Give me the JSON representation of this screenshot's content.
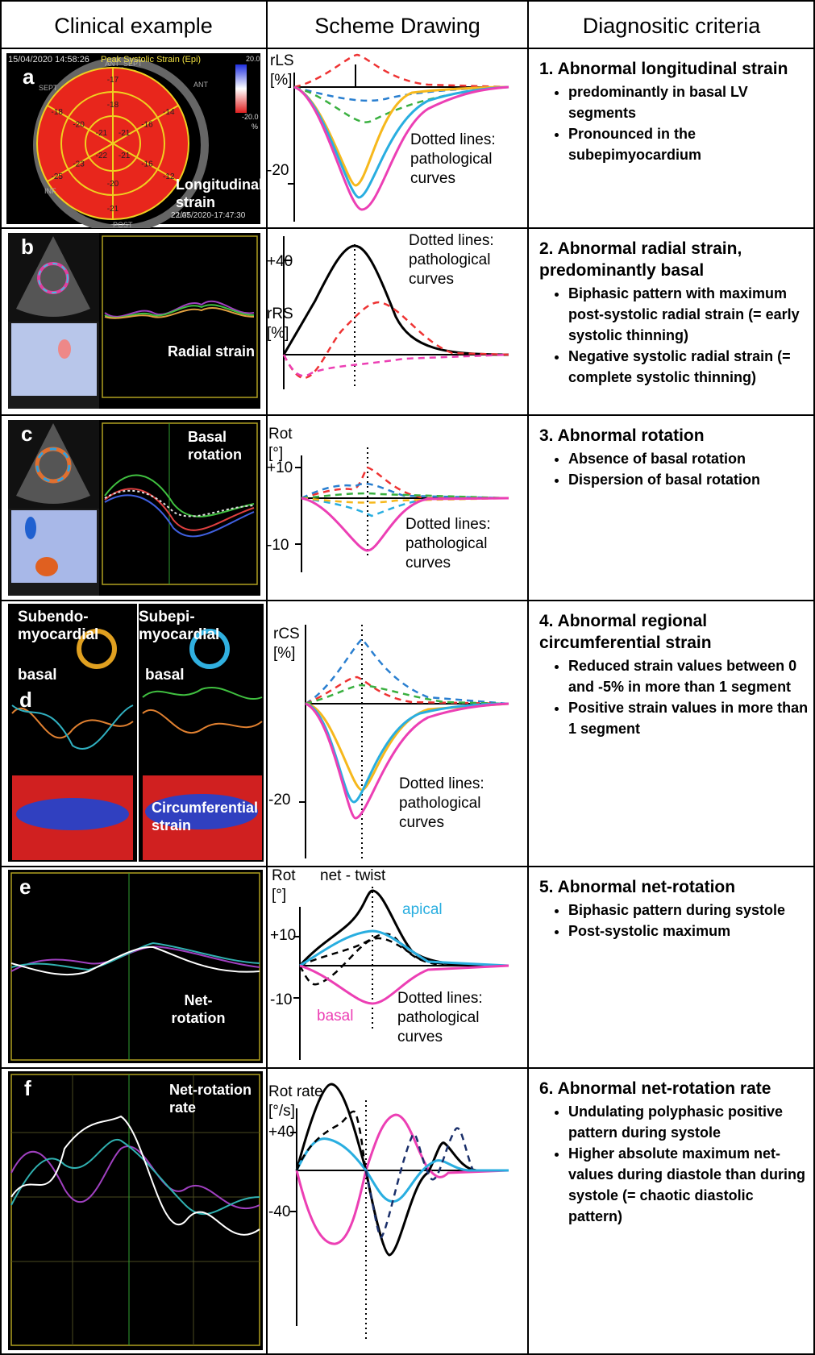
{
  "header": {
    "columns": [
      "Clinical example",
      "Scheme Drawing",
      "Diagnositic criteria"
    ]
  },
  "rows": [
    {
      "clinical": {
        "letter": "a",
        "timestamp": "15/04/2020 14:58:26",
        "title": "Peak Systolic Strain (Epi)",
        "scale_max": "20.0",
        "scale_min": "-20.0",
        "scale_unit": "%",
        "wall_labels": [
          "ANT_SEPT",
          "ANT",
          "LAT",
          "POST",
          "INF",
          "SEPT"
        ],
        "segment_values": [
          "-17",
          "-14",
          "-12",
          "-21",
          "-25",
          "-18",
          "-18",
          "-16",
          "-16",
          "-20",
          "-23",
          "-20",
          "-21",
          "-21",
          "-22",
          "-21"
        ],
        "label": "Longitudinal strain",
        "date": "22/05/2020-17:47:30"
      },
      "scheme": {
        "axis": "rLS [%]",
        "ticks": [
          "-20"
        ],
        "annotation": "Dotted lines: pathological curves"
      },
      "criteria": {
        "title": "1. Abnormal longitudinal strain",
        "bullets": [
          "predominantly in basal LV segments",
          "Pronounced in the subepimyocardium"
        ]
      }
    },
    {
      "clinical": {
        "letter": "b",
        "label": "Radial strain"
      },
      "scheme": {
        "axis": "rRS [%]",
        "ticks": [
          "+40"
        ],
        "annotation": "Dotted lines: pathological curves"
      },
      "criteria": {
        "title": "2. Abnormal radial strain, predominantly basal",
        "bullets": [
          "Biphasic pattern with maximum post-systolic radial strain (= early systolic thinning)",
          "Negative systolic radial strain (= complete systolic thinning)"
        ]
      }
    },
    {
      "clinical": {
        "letter": "c",
        "label": "Basal rotation"
      },
      "scheme": {
        "axis": "Rot [°]",
        "ticks": [
          "+10",
          "-10"
        ],
        "annotation": "Dotted lines: pathological curves"
      },
      "criteria": {
        "title": "3. Abnormal rotation",
        "bullets": [
          "Absence of basal rotation",
          "Dispersion of basal rotation"
        ]
      }
    },
    {
      "clinical": {
        "letter": "d",
        "left_title": "Subendo-myocardial",
        "right_title": "Subepi-myocardial",
        "left_sub": "basal",
        "right_sub": "basal",
        "label": "Circumferential strain"
      },
      "scheme": {
        "axis": "rCS [%]",
        "ticks": [
          "-20"
        ],
        "annotation": "Dotted lines: pathological curves"
      },
      "criteria": {
        "title": "4. Abnormal regional circumferential strain",
        "bullets": [
          "Reduced strain values between 0 and -5% in more than 1 segment",
          "Positive strain values in more than 1 segment"
        ]
      }
    },
    {
      "clinical": {
        "letter": "e",
        "label": "Net-rotation"
      },
      "scheme": {
        "axis": "Rot [°]",
        "ticks": [
          "+10",
          "-10"
        ],
        "curve_labels": [
          "net - twist",
          "apical",
          "basal"
        ],
        "annotation": "Dotted lines: pathological curves"
      },
      "criteria": {
        "title": "5. Abnormal net-rotation",
        "bullets": [
          "Biphasic pattern during systole",
          "Post-systolic maximum"
        ]
      }
    },
    {
      "clinical": {
        "letter": "f",
        "label": "Net-rotation rate"
      },
      "scheme": {
        "axis": "Rot rate [°/s]",
        "ticks": [
          "+40",
          "-40"
        ]
      },
      "criteria": {
        "title": "6. Abnormal net-rotation rate",
        "bullets": [
          "Undulating polyphasic positive pattern during systole",
          "Higher absolute maximum net-values during diastole than during systole (= chaotic diastolic pattern)"
        ]
      }
    }
  ]
}
